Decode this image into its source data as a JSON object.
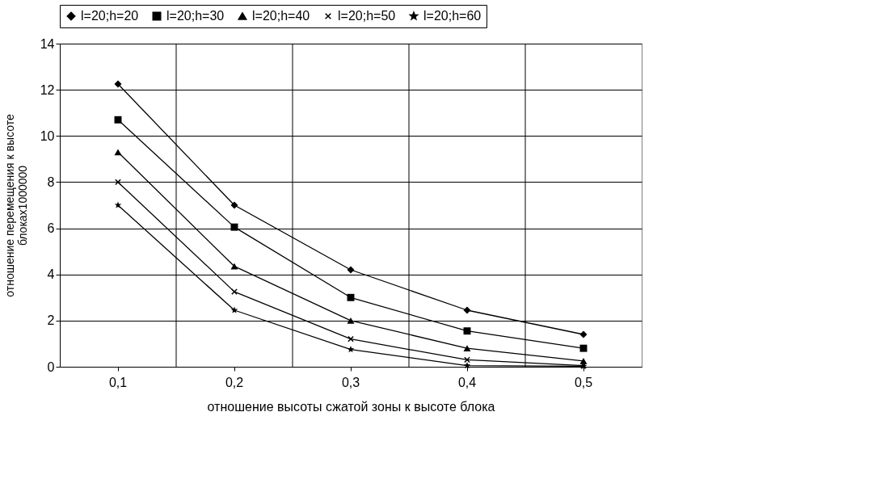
{
  "chart_data": {
    "type": "line",
    "xlabel": "отношение высоты сжатой зоны к высоте блока",
    "ylabel": "отношение перемещения к высоте блоках1000000",
    "categories": [
      "0,1",
      "0,2",
      "0,3",
      "0,4",
      "0,5"
    ],
    "ylim": [
      0,
      14
    ],
    "yticks": [
      0,
      2,
      4,
      6,
      8,
      10,
      12,
      14
    ],
    "grid": true,
    "legend": "top",
    "series": [
      {
        "name": "l=20;h=20",
        "color": "#000000",
        "marker": "diamond",
        "values": [
          12.25,
          7.0,
          4.2,
          2.45,
          1.4
        ]
      },
      {
        "name": "l=20;h=30",
        "color": "#000000",
        "marker": "square",
        "values": [
          10.7,
          6.05,
          3.0,
          1.55,
          0.8
        ]
      },
      {
        "name": "l=20;h=40",
        "color": "#000000",
        "marker": "triangle",
        "values": [
          9.3,
          4.35,
          2.0,
          0.8,
          0.25
        ]
      },
      {
        "name": "l=20;h=50",
        "color": "#000000",
        "marker": "cross",
        "values": [
          8.0,
          3.25,
          1.2,
          0.3,
          0.05
        ]
      },
      {
        "name": "l=20;h=60",
        "color": "#000000",
        "marker": "star",
        "values": [
          7.0,
          2.45,
          0.75,
          0.05,
          0.02
        ]
      }
    ]
  }
}
